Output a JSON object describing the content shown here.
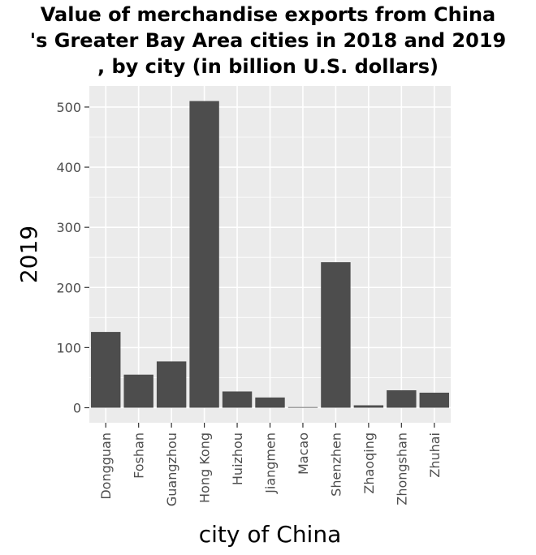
{
  "chart_data": {
    "type": "bar",
    "title_lines": [
      "Value of merchandise exports from China",
      "'s Greater Bay Area cities in 2018 and 2019",
      ", by city (in billion U.S. dollars)"
    ],
    "xlabel": "city of China",
    "ylabel": "2019",
    "categories": [
      "Dongguan",
      "Foshan",
      "Guangzhou",
      "Hong Kong",
      "Huizhou",
      "Jiangmen",
      "Macao",
      "Shenzhen",
      "Zhaoqing",
      "Zhongshan",
      "Zhuhai"
    ],
    "values": [
      126,
      55,
      77,
      510,
      27,
      17,
      1,
      242,
      4,
      29,
      25
    ],
    "ylim": [
      -25,
      535
    ],
    "yticks": [
      0,
      100,
      200,
      300,
      400,
      500
    ],
    "grid": true,
    "colors": {
      "bar": "#4d4d4d",
      "panel": "#ebebeb",
      "grid": "#ffffff"
    }
  }
}
